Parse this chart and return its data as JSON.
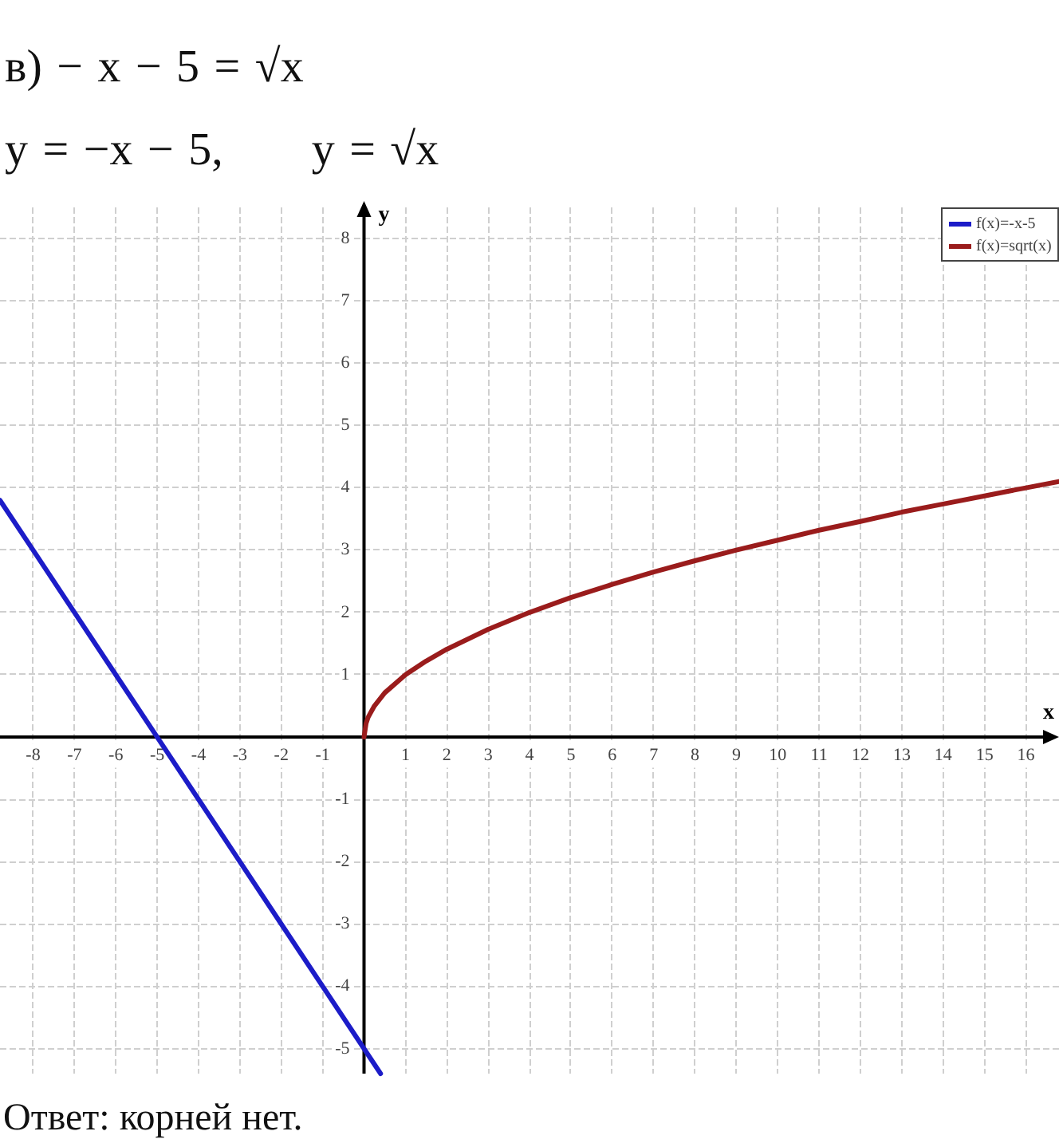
{
  "chart_data": {
    "type": "line",
    "title": "в) − x − 5 = √x",
    "subtitle": "y = −x − 5,      y = √x",
    "xlabel": "x",
    "ylabel": "y",
    "annotations": [
      "Ответ: корней нет."
    ],
    "series": [
      {
        "name": "f(x)=-x-5",
        "color": "#1c1cc8",
        "x": [
          -8.8,
          -8,
          -6,
          -5,
          -4,
          -2,
          0,
          0.4
        ],
        "values": [
          3.8,
          3,
          1,
          0,
          -1,
          -3,
          -5,
          -5.4
        ]
      },
      {
        "name": "f(x)=sqrt(x)",
        "color": "#9a1c1c",
        "x": [
          0,
          0.05,
          0.1,
          0.25,
          0.5,
          1,
          1.5,
          2,
          3,
          4,
          5,
          6,
          7,
          8,
          9,
          10,
          11,
          12,
          13,
          14,
          15,
          16,
          16.8
        ],
        "values": [
          0,
          0.22,
          0.32,
          0.5,
          0.71,
          1,
          1.22,
          1.41,
          1.73,
          2,
          2.24,
          2.45,
          2.65,
          2.83,
          3,
          3.16,
          3.32,
          3.46,
          3.61,
          3.74,
          3.87,
          4,
          4.1
        ]
      }
    ],
    "xlim": [
      -8.8,
      16.8
    ],
    "ylim": [
      -5.4,
      8.5
    ],
    "xticks": [
      -8,
      -7,
      -6,
      -5,
      -4,
      -3,
      -2,
      -1,
      1,
      2,
      3,
      4,
      5,
      6,
      7,
      8,
      9,
      10,
      11,
      12,
      13,
      14,
      15,
      16
    ],
    "yticks": [
      -5,
      -4,
      -3,
      -2,
      -1,
      1,
      2,
      3,
      4,
      5,
      6,
      7,
      8
    ],
    "grid": true,
    "legend": "top right",
    "marker": "none"
  }
}
